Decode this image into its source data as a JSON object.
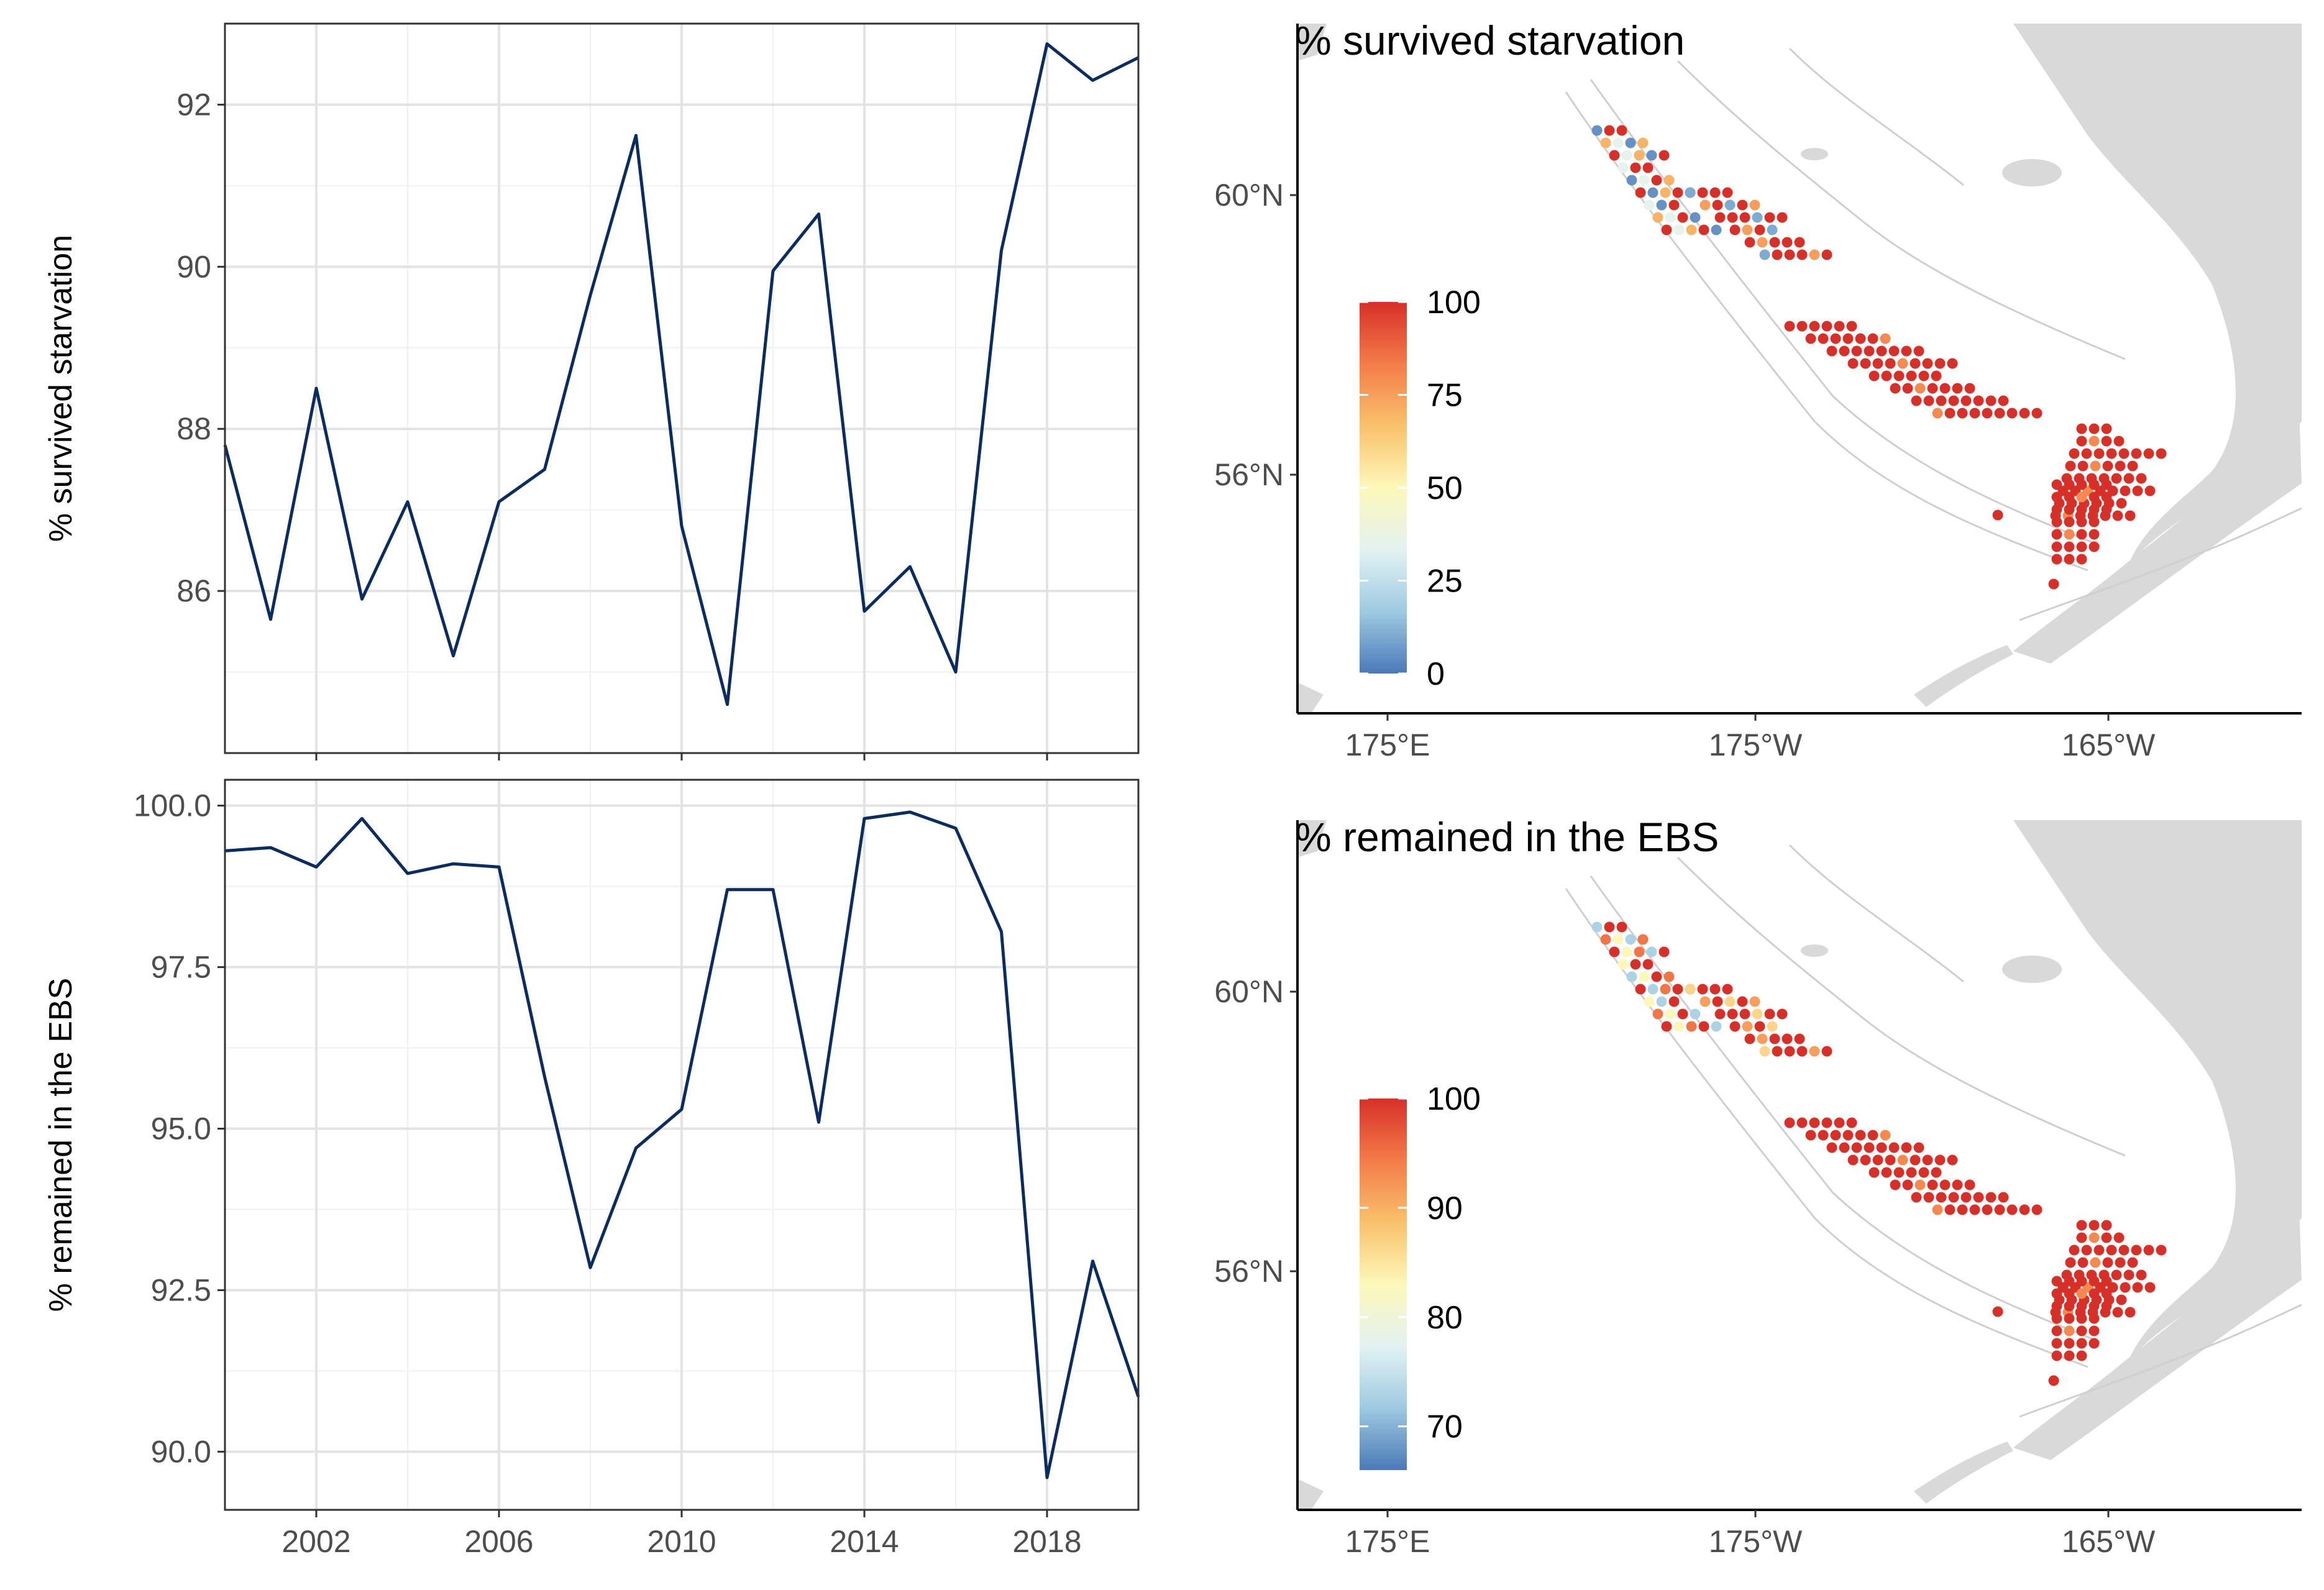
{
  "chart_data": [
    {
      "type": "line",
      "panel": "top-left",
      "ylabel": "% survived starvation",
      "xlabel": "",
      "xlim": [
        2000,
        2020
      ],
      "ylim": [
        84.0,
        93.0
      ],
      "yticks": [
        86,
        88,
        90,
        92
      ],
      "xticks": [
        2002,
        2006,
        2010,
        2014,
        2018
      ],
      "grid": true,
      "color": "#0a2c61",
      "x": [
        2000,
        2001,
        2002,
        2003,
        2004,
        2005,
        2006,
        2007,
        2008,
        2009,
        2010,
        2011,
        2012,
        2013,
        2014,
        2015,
        2016,
        2017,
        2018,
        2019,
        2020
      ],
      "y": [
        87.8,
        85.65,
        88.5,
        85.9,
        87.1,
        85.2,
        87.1,
        87.5,
        89.65,
        91.62,
        86.8,
        84.6,
        89.95,
        90.65,
        85.75,
        86.3,
        85.0,
        90.2,
        92.75,
        92.3,
        92.58
      ]
    },
    {
      "type": "line",
      "panel": "bottom-left",
      "ylabel": "% remained in the EBS",
      "xlabel": "",
      "xlim": [
        2000,
        2020
      ],
      "ylim": [
        89.1,
        100.4
      ],
      "yticks": [
        "90.0",
        "92.5",
        "95.0",
        "97.5",
        "100.0"
      ],
      "xticks": [
        "2002",
        "2006",
        "2010",
        "2014",
        "2018"
      ],
      "grid": true,
      "color": "#0a2c61",
      "x": [
        2000,
        2001,
        2002,
        2003,
        2004,
        2005,
        2006,
        2007,
        2008,
        2009,
        2010,
        2011,
        2012,
        2013,
        2014,
        2015,
        2016,
        2017,
        2018,
        2019,
        2020
      ],
      "y": [
        99.3,
        99.35,
        99.05,
        99.8,
        98.95,
        99.1,
        99.05,
        95.8,
        92.85,
        94.7,
        95.3,
        98.7,
        98.7,
        95.1,
        99.8,
        99.9,
        99.65,
        98.05,
        89.6,
        92.95,
        90.85
      ]
    },
    {
      "type": "scatter",
      "panel": "top-right",
      "title": "% survived starvation",
      "xticks": [
        "175°E",
        "175°W",
        "165°W"
      ],
      "yticks": [
        "60°N",
        "56°N"
      ],
      "legend": {
        "position": "left",
        "ticks": [
          "100",
          "75",
          "50",
          "25",
          "0"
        ],
        "range": [
          0,
          100
        ]
      },
      "colorscale": [
        "#4a7ab8",
        "#9fcbe1",
        "#e2f2f2",
        "#fdf8b9",
        "#f9c06a",
        "#f47d4a",
        "#d73028"
      ],
      "land_color": "#d9d9d9",
      "contour_color": "#cfcfcf"
    },
    {
      "type": "scatter",
      "panel": "bottom-right",
      "title": "% remained in the EBS",
      "xticks": [
        "175°E",
        "175°W",
        "165°W"
      ],
      "yticks": [
        "60°N",
        "56°N"
      ],
      "legend": {
        "position": "left",
        "ticks": [
          "100",
          "90",
          "80",
          "70"
        ],
        "range": [
          66,
          100
        ]
      },
      "colorscale": [
        "#4a7ab8",
        "#9fcbe1",
        "#e2f2f2",
        "#fdf8b9",
        "#f9c06a",
        "#f47d4a",
        "#d73028"
      ],
      "land_color": "#d9d9d9",
      "contour_color": "#cfcfcf"
    }
  ]
}
